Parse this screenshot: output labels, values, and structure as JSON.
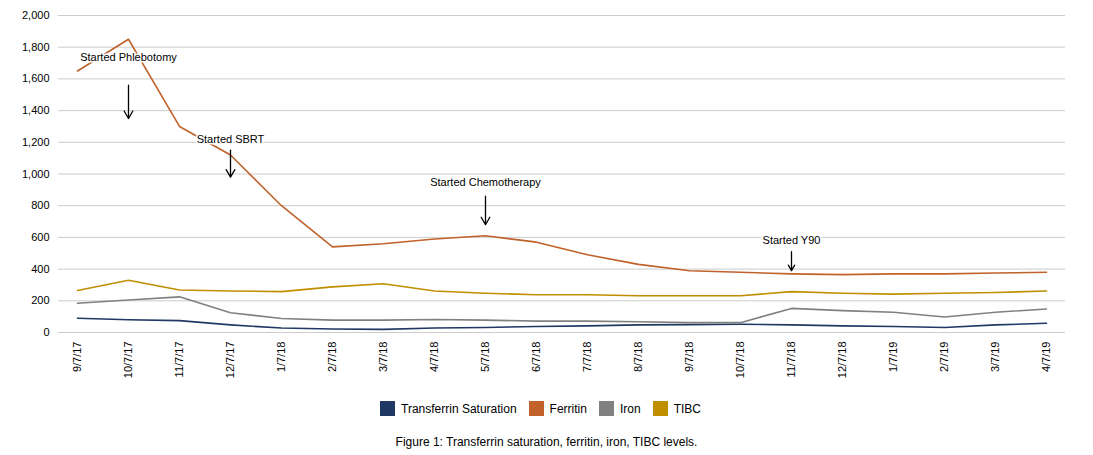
{
  "chart_data": {
    "type": "line",
    "categories": [
      "9/7/17",
      "10/7/17",
      "11/7/17",
      "12/7/17",
      "1/7/18",
      "2/7/18",
      "3/7/18",
      "4/7/18",
      "5/7/18",
      "6/7/18",
      "7/7/18",
      "8/7/18",
      "9/7/18",
      "10/7/18",
      "11/7/18",
      "12/7/18",
      "1/7/19",
      "2/7/19",
      "3/7/19",
      "4/7/19"
    ],
    "series": [
      {
        "name": "Transferrin Saturation",
        "color": "#1F3864",
        "values": [
          90,
          80,
          75,
          48,
          28,
          22,
          20,
          28,
          32,
          38,
          42,
          48,
          50,
          52,
          48,
          42,
          38,
          32,
          48,
          58
        ]
      },
      {
        "name": "Ferritin",
        "color": "#C0622A",
        "values": [
          1650,
          1850,
          1300,
          1120,
          800,
          540,
          560,
          590,
          610,
          570,
          490,
          430,
          390,
          380,
          370,
          365,
          370,
          370,
          375,
          380
        ]
      },
      {
        "name": "Iron",
        "color": "#808080",
        "values": [
          185,
          205,
          225,
          125,
          88,
          78,
          78,
          82,
          78,
          72,
          72,
          68,
          62,
          62,
          152,
          138,
          128,
          98,
          128,
          148
        ]
      },
      {
        "name": "TIBC",
        "color": "#BF8F00",
        "values": [
          265,
          330,
          268,
          262,
          258,
          288,
          308,
          262,
          248,
          238,
          238,
          232,
          232,
          232,
          258,
          248,
          242,
          248,
          252,
          262
        ]
      }
    ],
    "ylim": [
      0,
      2000
    ],
    "yticks": [
      0,
      200,
      400,
      600,
      800,
      1000,
      1200,
      1400,
      1600,
      1800,
      2000
    ],
    "grid": true,
    "legend": "bottom",
    "annotations": [
      {
        "text": "Started Phlebotomy",
        "x": "10/7/17",
        "y": 1700,
        "arrow_base": 1560,
        "arrow_tip": 1350
      },
      {
        "text": "Started SBRT",
        "x": "12/7/17",
        "y": 1180,
        "arrow_base": 1150,
        "arrow_tip": 980
      },
      {
        "text": "Started Chemotherapy",
        "x": "5/7/18",
        "y": 910,
        "arrow_base": 860,
        "arrow_tip": 680
      },
      {
        "text": "Started Y90",
        "x": "11/7/18",
        "y": 545,
        "arrow_base": 510,
        "arrow_tip": 390
      }
    ],
    "caption": "Figure 1: Transferrin saturation, ferritin, iron, TIBC levels."
  }
}
